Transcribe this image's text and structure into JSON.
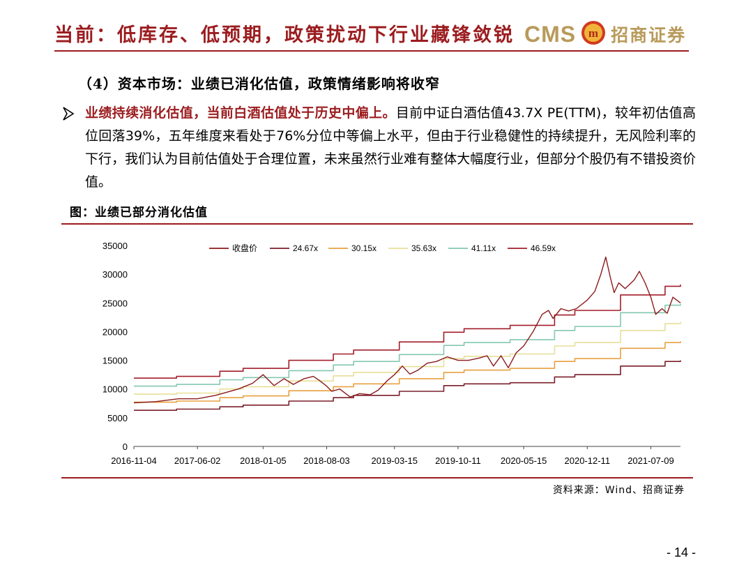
{
  "header": {
    "title": "当前：低库存、低预期，政策扰动下行业藏锋敛锐",
    "logo_text": "CMS",
    "logo_name": "招商证券",
    "logo_mark_icon": "cms-emblem-icon"
  },
  "section_title": "（4）资本市场：业绩已消化估值，政策情绪影响将收窄",
  "bullet": {
    "icon": "arrow-bullet-icon",
    "bold": "业绩持续消化估值，当前白酒估值处于历史中偏上。",
    "text": "目前中证白酒估值43.7X PE(TTM)，较年初估值高位回落39%，五年维度来看处于76%分位中等偏上水平，但由于行业稳健性的持续提升，无风险利率的下行，我们认为目前估值处于合理位置，未来虽然行业难有整体大幅度行业，但部分个股仍有不错投资价值。"
  },
  "figure_caption": "图：业绩已部分消化估值",
  "source_note": "资料来源：Wind、招商证券",
  "page_number": "- 14 -",
  "colors": {
    "accent": "#9b1c1f",
    "gold": "#b89a5a"
  },
  "chart_data": {
    "type": "line",
    "title": "",
    "xlabel": "",
    "ylabel": "",
    "x_start": "2016-11-04",
    "x_end": "2021-10-15",
    "ylim": [
      0,
      35000
    ],
    "yticks": [
      "0",
      "5000",
      "10000",
      "15000",
      "20000",
      "25000",
      "30000",
      "35000"
    ],
    "xtick_labels": [
      "2016-11-04",
      "2017-06-02",
      "2018-01-05",
      "2018-08-03",
      "2019-03-15",
      "2019-10-11",
      "2020-05-15",
      "2020-12-11",
      "2021-07-09"
    ],
    "legend_position": "top",
    "grid": false,
    "series": [
      {
        "name": "收盘价",
        "color": "#8b1a1a",
        "step": false,
        "points": [
          [
            "2016-11-04",
            7600
          ],
          [
            "2017-01-15",
            7800
          ],
          [
            "2017-04-01",
            8300
          ],
          [
            "2017-06-02",
            8300
          ],
          [
            "2017-08-01",
            8900
          ],
          [
            "2017-10-15",
            10000
          ],
          [
            "2017-12-01",
            11000
          ],
          [
            "2018-01-05",
            12500
          ],
          [
            "2018-02-10",
            10600
          ],
          [
            "2018-03-15",
            11800
          ],
          [
            "2018-04-15",
            10800
          ],
          [
            "2018-05-20",
            11800
          ],
          [
            "2018-06-20",
            12200
          ],
          [
            "2018-07-10",
            11500
          ],
          [
            "2018-08-03",
            10500
          ],
          [
            "2018-08-20",
            9600
          ],
          [
            "2018-09-15",
            10000
          ],
          [
            "2018-10-20",
            8600
          ],
          [
            "2018-11-20",
            9200
          ],
          [
            "2018-12-25",
            9000
          ],
          [
            "2019-01-20",
            9800
          ],
          [
            "2019-02-20",
            11500
          ],
          [
            "2019-03-15",
            12500
          ],
          [
            "2019-04-10",
            14000
          ],
          [
            "2019-05-05",
            12600
          ],
          [
            "2019-06-01",
            13300
          ],
          [
            "2019-07-01",
            14500
          ],
          [
            "2019-08-01",
            14800
          ],
          [
            "2019-09-05",
            15600
          ],
          [
            "2019-10-11",
            15000
          ],
          [
            "2019-11-15",
            15000
          ],
          [
            "2019-12-20",
            15400
          ],
          [
            "2020-01-15",
            15800
          ],
          [
            "2020-02-05",
            14000
          ],
          [
            "2020-03-01",
            15800
          ],
          [
            "2020-03-25",
            13700
          ],
          [
            "2020-04-20",
            16300
          ],
          [
            "2020-05-15",
            17500
          ],
          [
            "2020-06-15",
            20000
          ],
          [
            "2020-07-15",
            23000
          ],
          [
            "2020-08-05",
            23700
          ],
          [
            "2020-08-20",
            22300
          ],
          [
            "2020-09-15",
            24000
          ],
          [
            "2020-10-10",
            23600
          ],
          [
            "2020-11-05",
            24000
          ],
          [
            "2020-12-11",
            25500
          ],
          [
            "2021-01-05",
            27000
          ],
          [
            "2021-01-25",
            30000
          ],
          [
            "2021-02-10",
            33000
          ],
          [
            "2021-02-25",
            29500
          ],
          [
            "2021-03-10",
            26800
          ],
          [
            "2021-03-25",
            28500
          ],
          [
            "2021-04-15",
            27500
          ],
          [
            "2021-05-15",
            29000
          ],
          [
            "2021-06-01",
            30500
          ],
          [
            "2021-06-20",
            28500
          ],
          [
            "2021-07-09",
            26000
          ],
          [
            "2021-07-25",
            23000
          ],
          [
            "2021-08-15",
            24000
          ],
          [
            "2021-09-01",
            23200
          ],
          [
            "2021-09-20",
            26000
          ],
          [
            "2021-10-15",
            25000
          ]
        ]
      },
      {
        "name": "24.67x",
        "color": "#7a1e2a",
        "step": true,
        "points": [
          [
            "2016-11-04",
            6300
          ],
          [
            "2017-03-25",
            6500
          ],
          [
            "2017-08-15",
            6900
          ],
          [
            "2017-10-31",
            7200
          ],
          [
            "2018-03-31",
            7900
          ],
          [
            "2018-08-25",
            8500
          ],
          [
            "2018-10-31",
            8900
          ],
          [
            "2019-03-31",
            9600
          ],
          [
            "2019-08-25",
            10600
          ],
          [
            "2019-10-31",
            10900
          ],
          [
            "2020-03-31",
            11100
          ],
          [
            "2020-08-25",
            12100
          ],
          [
            "2020-10-31",
            12500
          ],
          [
            "2021-03-31",
            14000
          ],
          [
            "2021-08-25",
            14800
          ],
          [
            "2021-10-15",
            15000
          ]
        ]
      },
      {
        "name": "30.15x",
        "color": "#e8a040",
        "step": true,
        "points": [
          [
            "2016-11-04",
            7700
          ],
          [
            "2017-03-25",
            7900
          ],
          [
            "2017-08-15",
            8500
          ],
          [
            "2017-10-31",
            8800
          ],
          [
            "2018-03-31",
            9700
          ],
          [
            "2018-08-25",
            10400
          ],
          [
            "2018-10-31",
            10900
          ],
          [
            "2019-03-31",
            11800
          ],
          [
            "2019-08-25",
            12900
          ],
          [
            "2019-10-31",
            13300
          ],
          [
            "2020-03-31",
            13600
          ],
          [
            "2020-08-25",
            14800
          ],
          [
            "2020-10-31",
            15300
          ],
          [
            "2021-03-31",
            17100
          ],
          [
            "2021-08-25",
            18100
          ],
          [
            "2021-10-15",
            18300
          ]
        ]
      },
      {
        "name": "35.63x",
        "color": "#e8df98",
        "step": true,
        "points": [
          [
            "2016-11-04",
            9100
          ],
          [
            "2017-03-25",
            9300
          ],
          [
            "2017-08-15",
            10000
          ],
          [
            "2017-10-31",
            10400
          ],
          [
            "2018-03-31",
            11400
          ],
          [
            "2018-08-25",
            12300
          ],
          [
            "2018-10-31",
            12900
          ],
          [
            "2019-03-31",
            13900
          ],
          [
            "2019-08-25",
            15300
          ],
          [
            "2019-10-31",
            15700
          ],
          [
            "2020-03-31",
            16100
          ],
          [
            "2020-08-25",
            17500
          ],
          [
            "2020-10-31",
            18100
          ],
          [
            "2021-03-31",
            20200
          ],
          [
            "2021-08-25",
            21400
          ],
          [
            "2021-10-15",
            21700
          ]
        ]
      },
      {
        "name": "41.11x",
        "color": "#84c7b0",
        "step": true,
        "points": [
          [
            "2016-11-04",
            10500
          ],
          [
            "2017-03-25",
            10800
          ],
          [
            "2017-08-15",
            11600
          ],
          [
            "2017-10-31",
            12000
          ],
          [
            "2018-03-31",
            13200
          ],
          [
            "2018-08-25",
            14200
          ],
          [
            "2018-10-31",
            14800
          ],
          [
            "2019-03-31",
            16000
          ],
          [
            "2019-08-25",
            17600
          ],
          [
            "2019-10-31",
            18100
          ],
          [
            "2020-03-31",
            18600
          ],
          [
            "2020-08-25",
            20200
          ],
          [
            "2020-10-31",
            20900
          ],
          [
            "2021-03-31",
            23300
          ],
          [
            "2021-08-25",
            24600
          ],
          [
            "2021-10-15",
            24800
          ]
        ]
      },
      {
        "name": "46.59x",
        "color": "#a31d2a",
        "step": true,
        "points": [
          [
            "2016-11-04",
            11900
          ],
          [
            "2017-03-25",
            12200
          ],
          [
            "2017-08-15",
            13100
          ],
          [
            "2017-10-31",
            13600
          ],
          [
            "2018-03-31",
            15000
          ],
          [
            "2018-08-25",
            16100
          ],
          [
            "2018-10-31",
            16800
          ],
          [
            "2019-03-31",
            18200
          ],
          [
            "2019-08-25",
            19900
          ],
          [
            "2019-10-31",
            20500
          ],
          [
            "2020-03-31",
            21100
          ],
          [
            "2020-08-25",
            22900
          ],
          [
            "2020-10-31",
            23700
          ],
          [
            "2021-03-31",
            26400
          ],
          [
            "2021-08-25",
            27900
          ],
          [
            "2021-10-15",
            28200
          ]
        ]
      }
    ]
  }
}
